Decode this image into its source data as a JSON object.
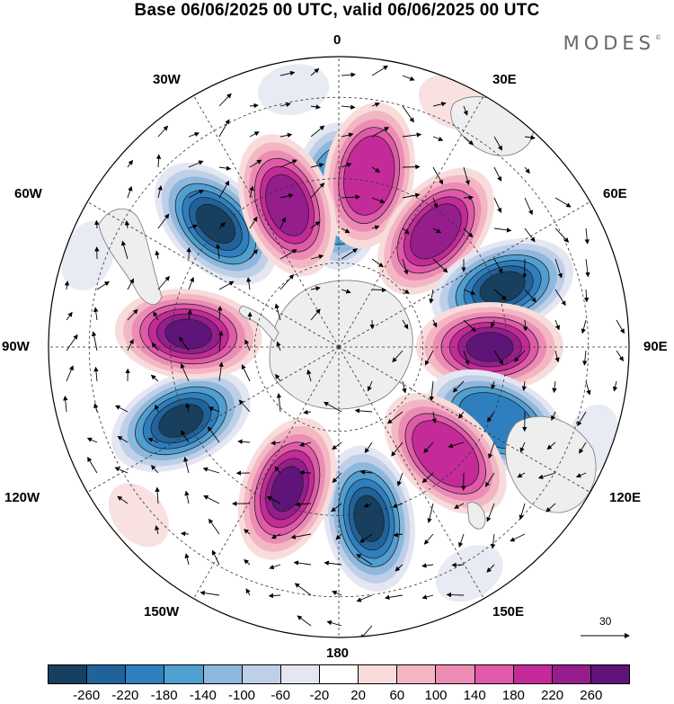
{
  "title": "Base 06/06/2025 00 UTC, valid 06/06/2025 00 UTC",
  "logo": "MODES",
  "logo_mark": "©",
  "longitude_labels": {
    "top": "0",
    "bottom": "180",
    "left": "90W",
    "right": "90E",
    "nw1": "30W",
    "nw2": "60W",
    "ne1": "30E",
    "ne2": "60E",
    "sw1": "120W",
    "sw2": "150W",
    "se1": "120E",
    "se2": "150E"
  },
  "vector_scale": "30",
  "colorbar": {
    "colors": [
      "#173f5f",
      "#20639b",
      "#2f7fbf",
      "#4f9fd0",
      "#8db7dc",
      "#c0cfe8",
      "#e4e6f2",
      "#ffffff",
      "#f8dcdc",
      "#f3b7c3",
      "#ec8cb4",
      "#e05aa9",
      "#c42a98",
      "#951d8c",
      "#5e1478"
    ],
    "tick_labels": [
      "-260",
      "-220",
      "-180",
      "-140",
      "-100",
      "-60",
      "-20",
      "20",
      "60",
      "100",
      "140",
      "180",
      "220",
      "260"
    ]
  },
  "map_data": {
    "projection": "south-polar-stereographic",
    "anomaly_centers": [
      {
        "lon": 0,
        "value": -120
      },
      {
        "lon": 10,
        "value": 180
      },
      {
        "lon": 40,
        "value": 220
      },
      {
        "lon": 70,
        "value": -260
      },
      {
        "lon": 90,
        "value": 240
      },
      {
        "lon": 115,
        "value": -160
      },
      {
        "lon": 135,
        "value": 160
      },
      {
        "lon": 170,
        "value": -260
      },
      {
        "lon": -160,
        "value": 240
      },
      {
        "lon": -115,
        "value": -260
      },
      {
        "lon": -85,
        "value": 260
      },
      {
        "lon": -45,
        "value": -260
      },
      {
        "lon": -20,
        "value": 200
      }
    ]
  }
}
